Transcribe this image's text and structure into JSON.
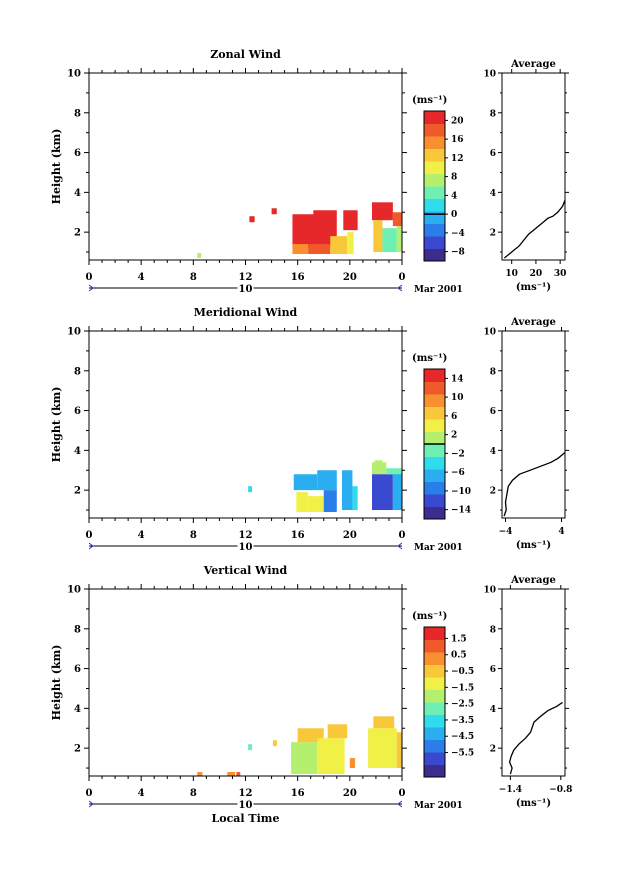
{
  "figure": {
    "date_label": "Mar 2001",
    "x_axis_title": "Local Time",
    "day_label": "10",
    "y_axis_title": "Height (km)",
    "unit_label": "(ms⁻¹)",
    "avg_unit_label": "(ms⁻¹)",
    "avg_title": "Average",
    "x_ticks": [
      "0",
      "4",
      "8",
      "12",
      "16",
      "20",
      "0"
    ],
    "y_ticks": [
      "2",
      "4",
      "6",
      "8",
      "10"
    ]
  },
  "colors": {
    "scale": [
      "#3c2c8c",
      "#3a4ad0",
      "#2a7ee8",
      "#2aaef0",
      "#30dcec",
      "#6ef0b4",
      "#b4f06e",
      "#f0f046",
      "#f8c83a",
      "#f89030",
      "#f05a2a",
      "#e6282a"
    ],
    "axis": "#000000"
  },
  "chart_data": [
    {
      "type": "heatmap",
      "title": "Zonal Wind",
      "xlim": [
        0,
        24
      ],
      "ylim": [
        0.6,
        10
      ],
      "x_ticks": [
        0,
        4,
        8,
        12,
        16,
        20,
        24
      ],
      "y_ticks": [
        2,
        4,
        6,
        8,
        10
      ],
      "colorbar": {
        "unit": "(ms⁻¹)",
        "min": -10,
        "max": 22,
        "ticks": [
          20,
          16,
          12,
          8,
          4,
          0,
          -4,
          -8
        ],
        "tick_labels": [
          "20",
          "16",
          "12",
          "8",
          "4",
          "0",
          "−4",
          "−8"
        ],
        "zero_line": 0
      },
      "cells": [
        {
          "x0": 8.3,
          "x1": 8.6,
          "y0": 0.7,
          "y1": 0.95,
          "v": 6
        },
        {
          "x0": 12.3,
          "x1": 12.7,
          "y0": 2.5,
          "y1": 2.8,
          "v": 21
        },
        {
          "x0": 14.0,
          "x1": 14.4,
          "y0": 2.9,
          "y1": 3.2,
          "v": 21
        },
        {
          "x0": 15.6,
          "x1": 17.5,
          "y0": 1.2,
          "y1": 2.9,
          "v": 21
        },
        {
          "x0": 17.2,
          "x1": 19.0,
          "y0": 1.3,
          "y1": 3.1,
          "v": 21
        },
        {
          "x0": 19.5,
          "x1": 20.6,
          "y0": 2.1,
          "y1": 3.1,
          "v": 21
        },
        {
          "x0": 15.6,
          "x1": 16.8,
          "y0": 0.9,
          "y1": 1.4,
          "v": 14
        },
        {
          "x0": 16.8,
          "x1": 18.5,
          "y0": 0.9,
          "y1": 1.4,
          "v": 17
        },
        {
          "x0": 18.5,
          "x1": 19.8,
          "y0": 0.9,
          "y1": 1.8,
          "v": 12
        },
        {
          "x0": 19.8,
          "x1": 20.3,
          "y0": 0.9,
          "y1": 2.0,
          "v": 10
        },
        {
          "x0": 21.7,
          "x1": 23.3,
          "y0": 2.6,
          "y1": 3.5,
          "v": 21
        },
        {
          "x0": 23.3,
          "x1": 24.0,
          "y0": 2.3,
          "y1": 3.0,
          "v": 18
        },
        {
          "x0": 21.8,
          "x1": 22.5,
          "y0": 1.0,
          "y1": 2.6,
          "v": 12
        },
        {
          "x0": 22.5,
          "x1": 23.6,
          "y0": 1.0,
          "y1": 2.2,
          "v": 5
        },
        {
          "x0": 23.6,
          "x1": 24.0,
          "y0": 1.0,
          "y1": 2.3,
          "v": 8
        }
      ],
      "average": {
        "xlim": [
          6,
          32
        ],
        "x_ticks": [
          10,
          20,
          30
        ],
        "x_tick_labels": [
          "10",
          "20",
          "30"
        ],
        "x": [
          7,
          10,
          13,
          15,
          17,
          19,
          21,
          23,
          25,
          27,
          29,
          31,
          32
        ],
        "y": [
          0.7,
          1.0,
          1.3,
          1.6,
          1.9,
          2.1,
          2.3,
          2.5,
          2.7,
          2.8,
          3.0,
          3.3,
          3.6
        ]
      }
    },
    {
      "type": "heatmap",
      "title": "Meridional Wind",
      "xlim": [
        0,
        24
      ],
      "ylim": [
        0.6,
        10
      ],
      "x_ticks": [
        0,
        4,
        8,
        12,
        16,
        20,
        24
      ],
      "y_ticks": [
        2,
        4,
        6,
        8,
        10
      ],
      "colorbar": {
        "unit": "(ms⁻¹)",
        "min": -16,
        "max": 16,
        "ticks": [
          14,
          10,
          6,
          2,
          -2,
          -6,
          -10,
          -14
        ],
        "tick_labels": [
          "14",
          "10",
          "6",
          "2",
          "−2",
          "−6",
          "−10",
          "−14"
        ],
        "zero_line": 0
      },
      "cells": [
        {
          "x0": 12.2,
          "x1": 12.5,
          "y0": 1.9,
          "y1": 2.2,
          "v": -4
        },
        {
          "x0": 15.7,
          "x1": 17.5,
          "y0": 2.0,
          "y1": 2.8,
          "v": -6
        },
        {
          "x0": 17.5,
          "x1": 19.0,
          "y0": 2.0,
          "y1": 3.0,
          "v": -8
        },
        {
          "x0": 15.9,
          "x1": 16.8,
          "y0": 0.9,
          "y1": 1.9,
          "v": 3
        },
        {
          "x0": 16.8,
          "x1": 18.0,
          "y0": 0.9,
          "y1": 1.7,
          "v": 4
        },
        {
          "x0": 18.0,
          "x1": 19.0,
          "y0": 0.9,
          "y1": 2.0,
          "v": -10
        },
        {
          "x0": 19.4,
          "x1": 20.2,
          "y0": 1.0,
          "y1": 3.0,
          "v": -8
        },
        {
          "x0": 20.2,
          "x1": 20.6,
          "y0": 1.0,
          "y1": 2.2,
          "v": -4
        },
        {
          "x0": 21.7,
          "x1": 22.8,
          "y0": 2.8,
          "y1": 3.4,
          "v": 2
        },
        {
          "x0": 21.7,
          "x1": 23.3,
          "y0": 1.0,
          "y1": 2.8,
          "v": -12
        },
        {
          "x0": 23.3,
          "x1": 24.0,
          "y0": 1.0,
          "y1": 3.0,
          "v": -6
        },
        {
          "x0": 21.9,
          "x1": 22.5,
          "y0": 3.0,
          "y1": 3.5,
          "v": 1
        },
        {
          "x0": 22.8,
          "x1": 24.0,
          "y0": 2.8,
          "y1": 3.1,
          "v": -2
        }
      ],
      "average": {
        "xlim": [
          -4.5,
          4.5
        ],
        "x_ticks": [
          -4,
          4
        ],
        "x_tick_labels": [
          "−4",
          "4"
        ],
        "x": [
          -4.2,
          -3.9,
          -4.0,
          -3.8,
          -3.6,
          -3.0,
          -2.0,
          -0.5,
          1.0,
          2.5,
          3.5,
          4.2,
          4.5
        ],
        "y": [
          0.7,
          1.0,
          1.4,
          1.8,
          2.2,
          2.5,
          2.8,
          3.0,
          3.2,
          3.4,
          3.6,
          3.8,
          3.9
        ]
      }
    },
    {
      "type": "heatmap",
      "title": "Vertical Wind",
      "xlim": [
        0,
        24
      ],
      "ylim": [
        0.6,
        10
      ],
      "x_ticks": [
        0,
        4,
        8,
        12,
        16,
        20,
        24
      ],
      "y_ticks": [
        2,
        4,
        6,
        8,
        10
      ],
      "colorbar": {
        "unit": "(ms⁻¹)",
        "min": -7,
        "max": 2.2,
        "ticks": [
          1.5,
          0.5,
          -0.5,
          -1.5,
          -2.5,
          -3.5,
          -4.5,
          -5.5
        ],
        "tick_labels": [
          "1.5",
          "0.5",
          "−0.5",
          "−1.5",
          "−2.5",
          "−3.5",
          "−4.5",
          "−5.5"
        ],
        "zero_line": null
      },
      "cells": [
        {
          "x0": 8.3,
          "x1": 8.7,
          "y0": 0.6,
          "y1": 0.8,
          "v": 0.6
        },
        {
          "x0": 10.6,
          "x1": 11.2,
          "y0": 0.6,
          "y1": 0.8,
          "v": 0.6
        },
        {
          "x0": 11.3,
          "x1": 11.6,
          "y0": 0.6,
          "y1": 0.8,
          "v": 1.2
        },
        {
          "x0": 12.2,
          "x1": 12.5,
          "y0": 1.9,
          "y1": 2.2,
          "v": -2.6
        },
        {
          "x0": 14.1,
          "x1": 14.4,
          "y0": 2.1,
          "y1": 2.4,
          "v": -0.8
        },
        {
          "x0": 15.5,
          "x1": 17.5,
          "y0": 0.7,
          "y1": 2.3,
          "v": -1.8
        },
        {
          "x0": 16.0,
          "x1": 18.0,
          "y0": 2.3,
          "y1": 3.0,
          "v": -0.4
        },
        {
          "x0": 17.5,
          "x1": 19.6,
          "y0": 0.7,
          "y1": 2.5,
          "v": -1.4
        },
        {
          "x0": 18.3,
          "x1": 19.8,
          "y0": 2.5,
          "y1": 3.2,
          "v": -0.6
        },
        {
          "x0": 20.0,
          "x1": 20.4,
          "y0": 1.0,
          "y1": 1.5,
          "v": 0.6
        },
        {
          "x0": 21.4,
          "x1": 23.6,
          "y0": 1.0,
          "y1": 3.0,
          "v": -1.2
        },
        {
          "x0": 21.8,
          "x1": 23.4,
          "y0": 3.0,
          "y1": 3.6,
          "v": -0.2
        },
        {
          "x0": 23.6,
          "x1": 24.0,
          "y0": 1.0,
          "y1": 2.8,
          "v": -0.6
        }
      ],
      "average": {
        "xlim": [
          -1.5,
          -0.75
        ],
        "x_ticks": [
          -1.4,
          -0.8
        ],
        "x_tick_labels": [
          "−1.4",
          "−0.8"
        ],
        "x": [
          -1.4,
          -1.38,
          -1.41,
          -1.39,
          -1.36,
          -1.3,
          -1.22,
          -1.16,
          -1.12,
          -1.04,
          -0.95,
          -0.85,
          -0.78
        ],
        "y": [
          0.7,
          1.0,
          1.3,
          1.6,
          1.9,
          2.2,
          2.5,
          2.8,
          3.3,
          3.6,
          3.9,
          4.1,
          4.3
        ]
      }
    }
  ]
}
